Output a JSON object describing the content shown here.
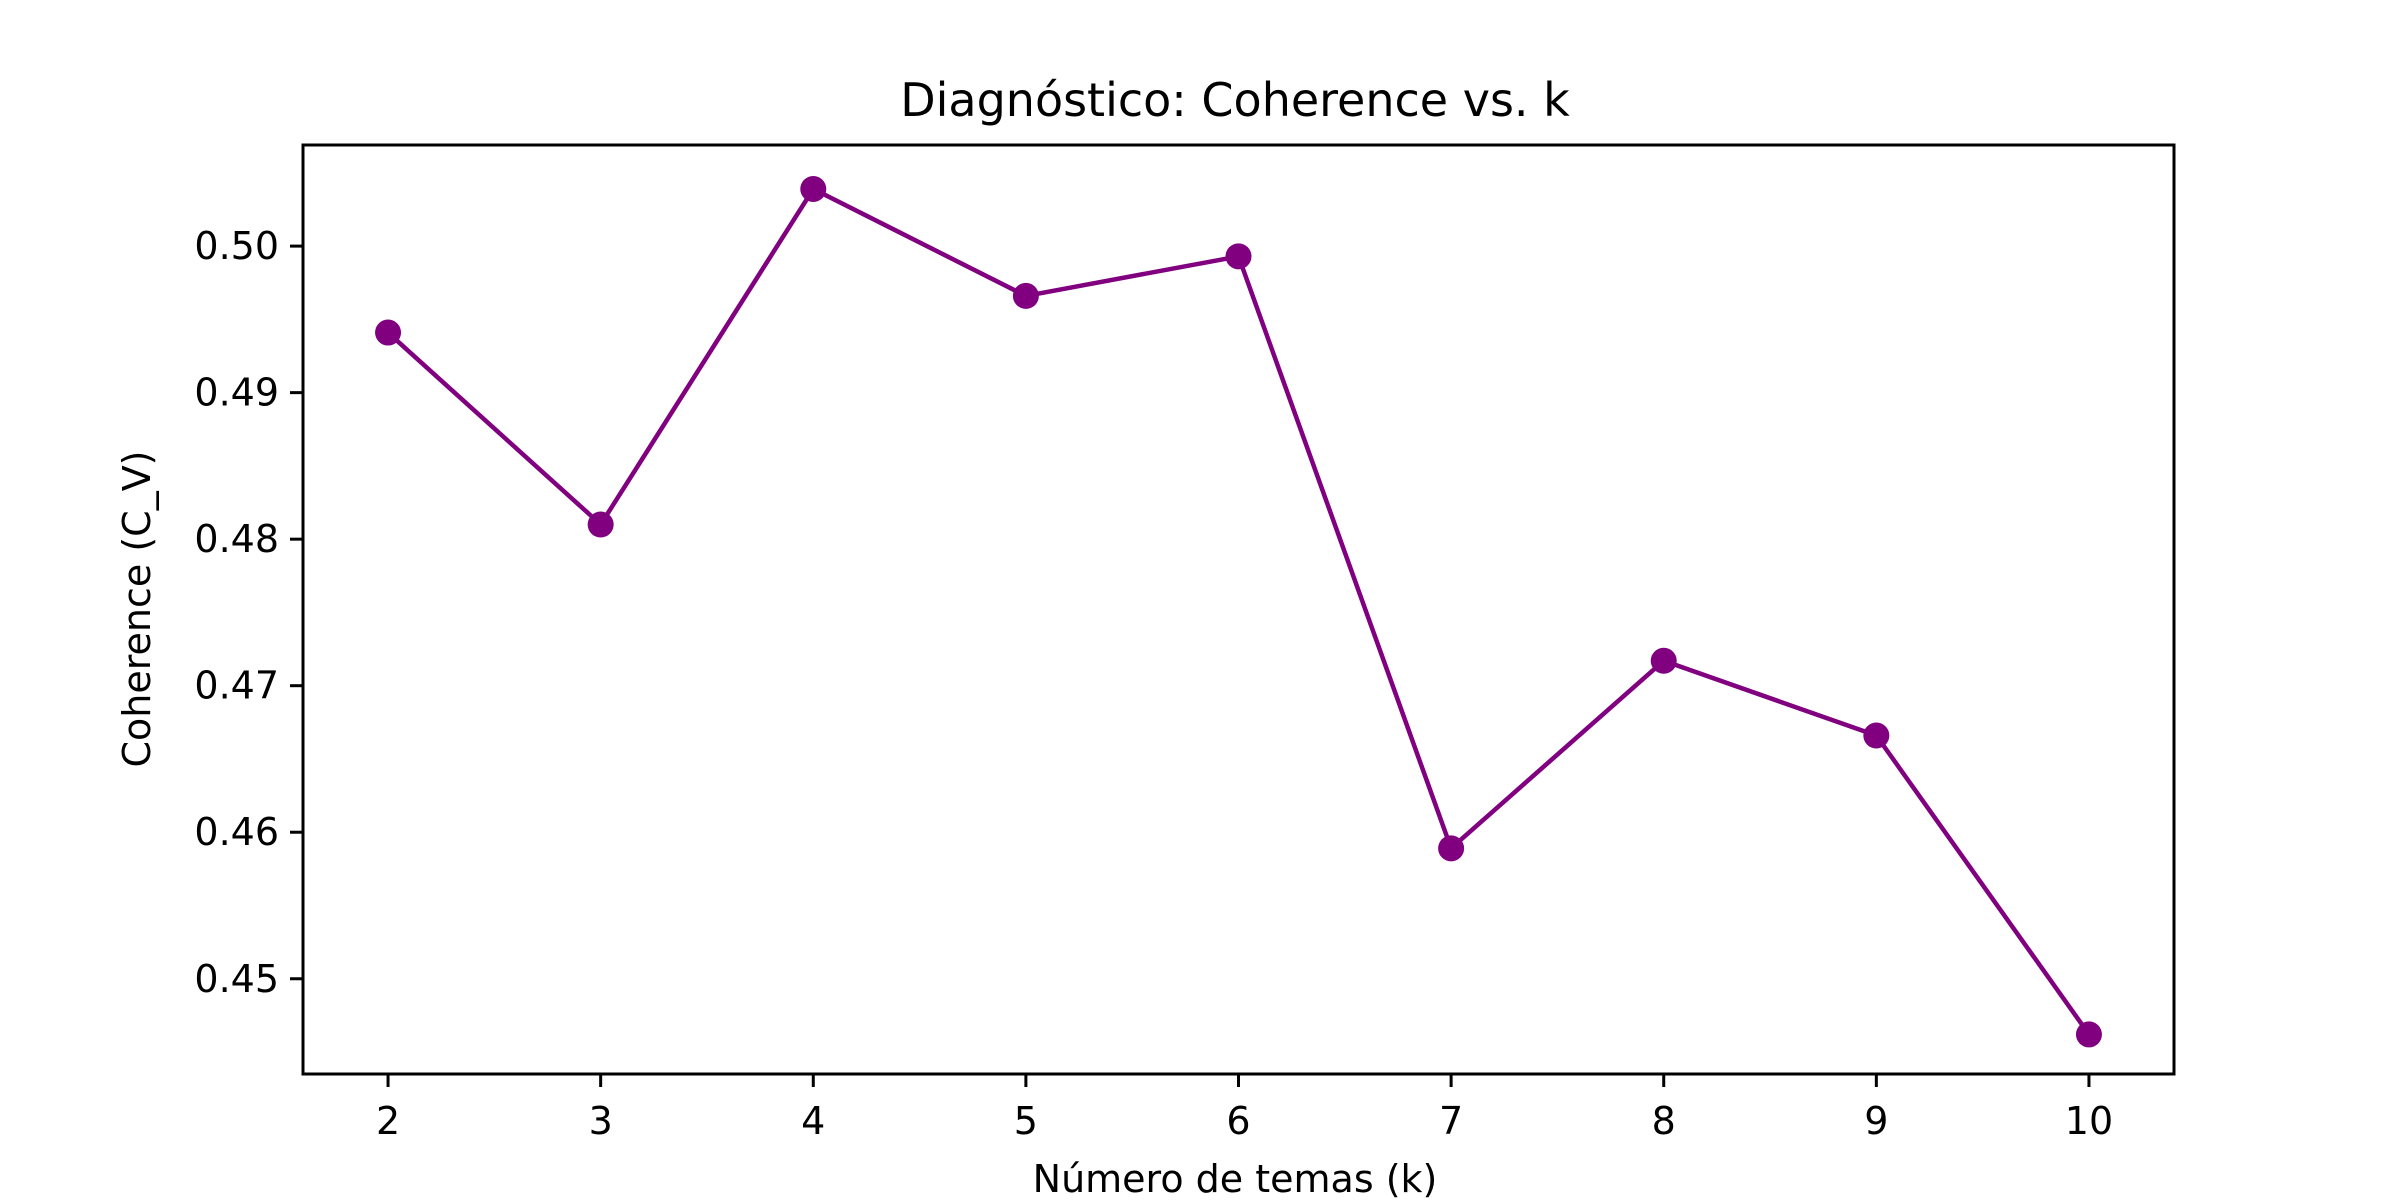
{
  "chart_data": {
    "type": "line",
    "title": "Diagnóstico: Coherence vs. k",
    "xlabel": "Número de temas (k)",
    "ylabel": "Coherence (C_V)",
    "x": [
      2,
      3,
      4,
      5,
      6,
      7,
      8,
      9,
      10
    ],
    "series": [
      {
        "values": [
          0.4941,
          0.481,
          0.5039,
          0.4966,
          0.4993,
          0.4589,
          0.4717,
          0.4666,
          0.4462
        ],
        "color": "#800080",
        "marker": "circle"
      }
    ],
    "xlim": [
      1.6,
      10.4
    ],
    "ylim": [
      0.4435,
      0.5069
    ],
    "xticks": [
      2,
      3,
      4,
      5,
      6,
      7,
      8,
      9,
      10
    ],
    "xtick_labels": [
      "2",
      "3",
      "4",
      "5",
      "6",
      "7",
      "8",
      "9",
      "10"
    ],
    "yticks": [
      0.45,
      0.46,
      0.47,
      0.48,
      0.49,
      0.5
    ],
    "ytick_labels": [
      "0.45",
      "0.46",
      "0.47",
      "0.48",
      "0.49",
      "0.50"
    ],
    "grid": false,
    "legend": "none"
  }
}
